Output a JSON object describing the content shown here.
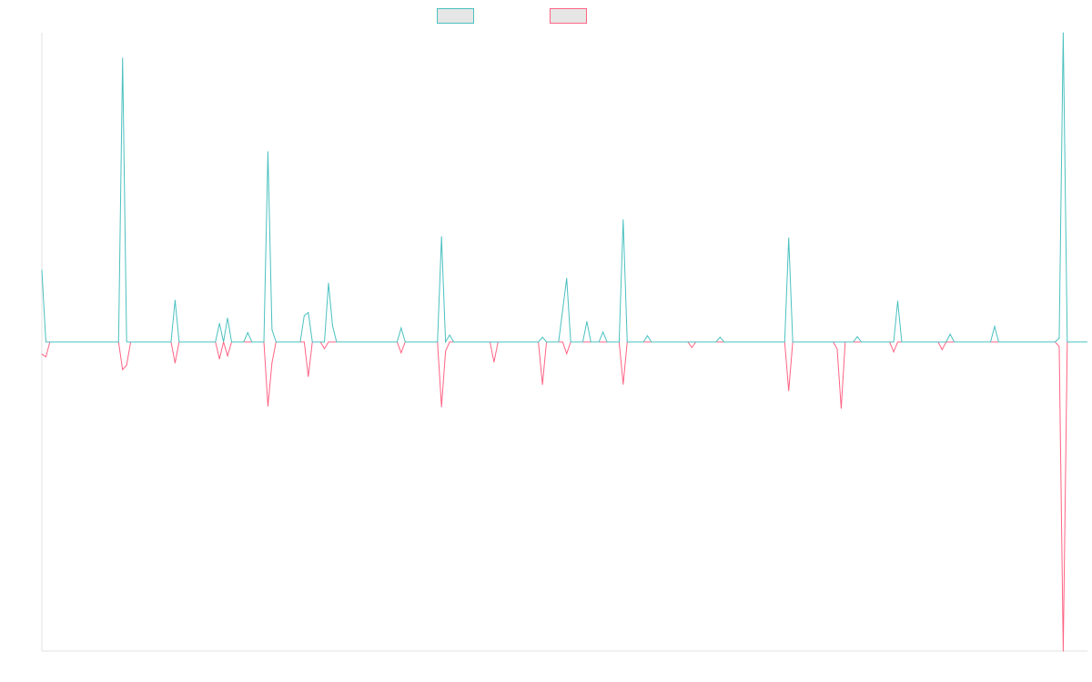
{
  "chart_data": {
    "type": "line",
    "title": "",
    "xlabel": "",
    "ylabel": "",
    "x_count": 260,
    "ylim": [
      -1,
      1
    ],
    "grid": false,
    "legend_position": "top-center",
    "series": [
      {
        "color": "#4bc0c0",
        "fill": "#e6e6e6",
        "points": [
          [
            0,
            0.232
          ],
          [
            1,
            0
          ],
          [
            15,
            0
          ],
          [
            20,
            0.918
          ],
          [
            21,
            0
          ],
          [
            32,
            0
          ],
          [
            33,
            0.135
          ],
          [
            34,
            0
          ],
          [
            43,
            0
          ],
          [
            44,
            0.06
          ],
          [
            45,
            0
          ],
          [
            46,
            0.077
          ],
          [
            47,
            0
          ],
          [
            50,
            0
          ],
          [
            51,
            0.03
          ],
          [
            52,
            0
          ],
          [
            55,
            0
          ],
          [
            56,
            0.615
          ],
          [
            57,
            0.04
          ],
          [
            58,
            0
          ],
          [
            64,
            0
          ],
          [
            65,
            0.085
          ],
          [
            66,
            0.095
          ],
          [
            67,
            0
          ],
          [
            70,
            0
          ],
          [
            71,
            0.19
          ],
          [
            72,
            0.053
          ],
          [
            73,
            0
          ],
          [
            88,
            0
          ],
          [
            89,
            0.045
          ],
          [
            90,
            0
          ],
          [
            98,
            0
          ],
          [
            99,
            0.34
          ],
          [
            100,
            0
          ],
          [
            101,
            0.022
          ],
          [
            102,
            0
          ],
          [
            123,
            0
          ],
          [
            124,
            0.015
          ],
          [
            125,
            0
          ],
          [
            128,
            0
          ],
          [
            129,
            0.102
          ],
          [
            130,
            0.206
          ],
          [
            131,
            0
          ],
          [
            134,
            0
          ],
          [
            135,
            0.066
          ],
          [
            136,
            0
          ],
          [
            138,
            0
          ],
          [
            139,
            0.032
          ],
          [
            140,
            0
          ],
          [
            143,
            0
          ],
          [
            144,
            0.395
          ],
          [
            145,
            0
          ],
          [
            149,
            0
          ],
          [
            150,
            0.02
          ],
          [
            151,
            0
          ],
          [
            167,
            0
          ],
          [
            168,
            0.015
          ],
          [
            169,
            0
          ],
          [
            184,
            0
          ],
          [
            185,
            0.336
          ],
          [
            186,
            0
          ],
          [
            201,
            0
          ],
          [
            202,
            0.017
          ],
          [
            203,
            0
          ],
          [
            211,
            0
          ],
          [
            212,
            0.132
          ],
          [
            213,
            0
          ],
          [
            224,
            0
          ],
          [
            225,
            0.025
          ],
          [
            226,
            0
          ],
          [
            235,
            0
          ],
          [
            236,
            0.05
          ],
          [
            237,
            0
          ],
          [
            251,
            0
          ],
          [
            252,
            0.012
          ],
          [
            253,
            1.0
          ],
          [
            254,
            0
          ],
          [
            259,
            0
          ]
        ]
      },
      {
        "color": "#ff6384",
        "fill": "#e6e6e6",
        "points": [
          [
            0,
            -0.04
          ],
          [
            1,
            -0.048
          ],
          [
            2,
            0
          ],
          [
            19,
            0
          ],
          [
            20,
            -0.09
          ],
          [
            21,
            -0.075
          ],
          [
            22,
            0
          ],
          [
            32,
            0
          ],
          [
            33,
            -0.068
          ],
          [
            34,
            0
          ],
          [
            43,
            0
          ],
          [
            44,
            -0.055
          ],
          [
            45,
            0
          ],
          [
            46,
            -0.045
          ],
          [
            47,
            0
          ],
          [
            55,
            0
          ],
          [
            56,
            -0.208
          ],
          [
            57,
            -0.068
          ],
          [
            58,
            0
          ],
          [
            65,
            0
          ],
          [
            66,
            -0.112
          ],
          [
            67,
            0
          ],
          [
            69,
            0
          ],
          [
            70,
            -0.022
          ],
          [
            71,
            0
          ],
          [
            88,
            0
          ],
          [
            89,
            -0.035
          ],
          [
            90,
            0
          ],
          [
            98,
            0
          ],
          [
            99,
            -0.21
          ],
          [
            100,
            -0.03
          ],
          [
            101,
            0
          ],
          [
            111,
            0
          ],
          [
            112,
            -0.065
          ],
          [
            113,
            0
          ],
          [
            123,
            0
          ],
          [
            124,
            -0.138
          ],
          [
            125,
            0
          ],
          [
            129,
            0
          ],
          [
            130,
            -0.038
          ],
          [
            131,
            0
          ],
          [
            143,
            0
          ],
          [
            144,
            -0.137
          ],
          [
            145,
            0
          ],
          [
            160,
            0
          ],
          [
            161,
            -0.018
          ],
          [
            162,
            0
          ],
          [
            184,
            0
          ],
          [
            185,
            -0.158
          ],
          [
            186,
            0
          ],
          [
            196,
            0
          ],
          [
            197,
            -0.022
          ],
          [
            198,
            -0.215
          ],
          [
            199,
            0
          ],
          [
            210,
            0
          ],
          [
            211,
            -0.032
          ],
          [
            212,
            0
          ],
          [
            222,
            0
          ],
          [
            223,
            -0.025
          ],
          [
            224,
            0
          ],
          [
            251,
            0
          ],
          [
            252,
            -0.015
          ],
          [
            253,
            -1.0
          ],
          [
            254,
            0
          ],
          [
            259,
            0
          ]
        ]
      }
    ]
  }
}
